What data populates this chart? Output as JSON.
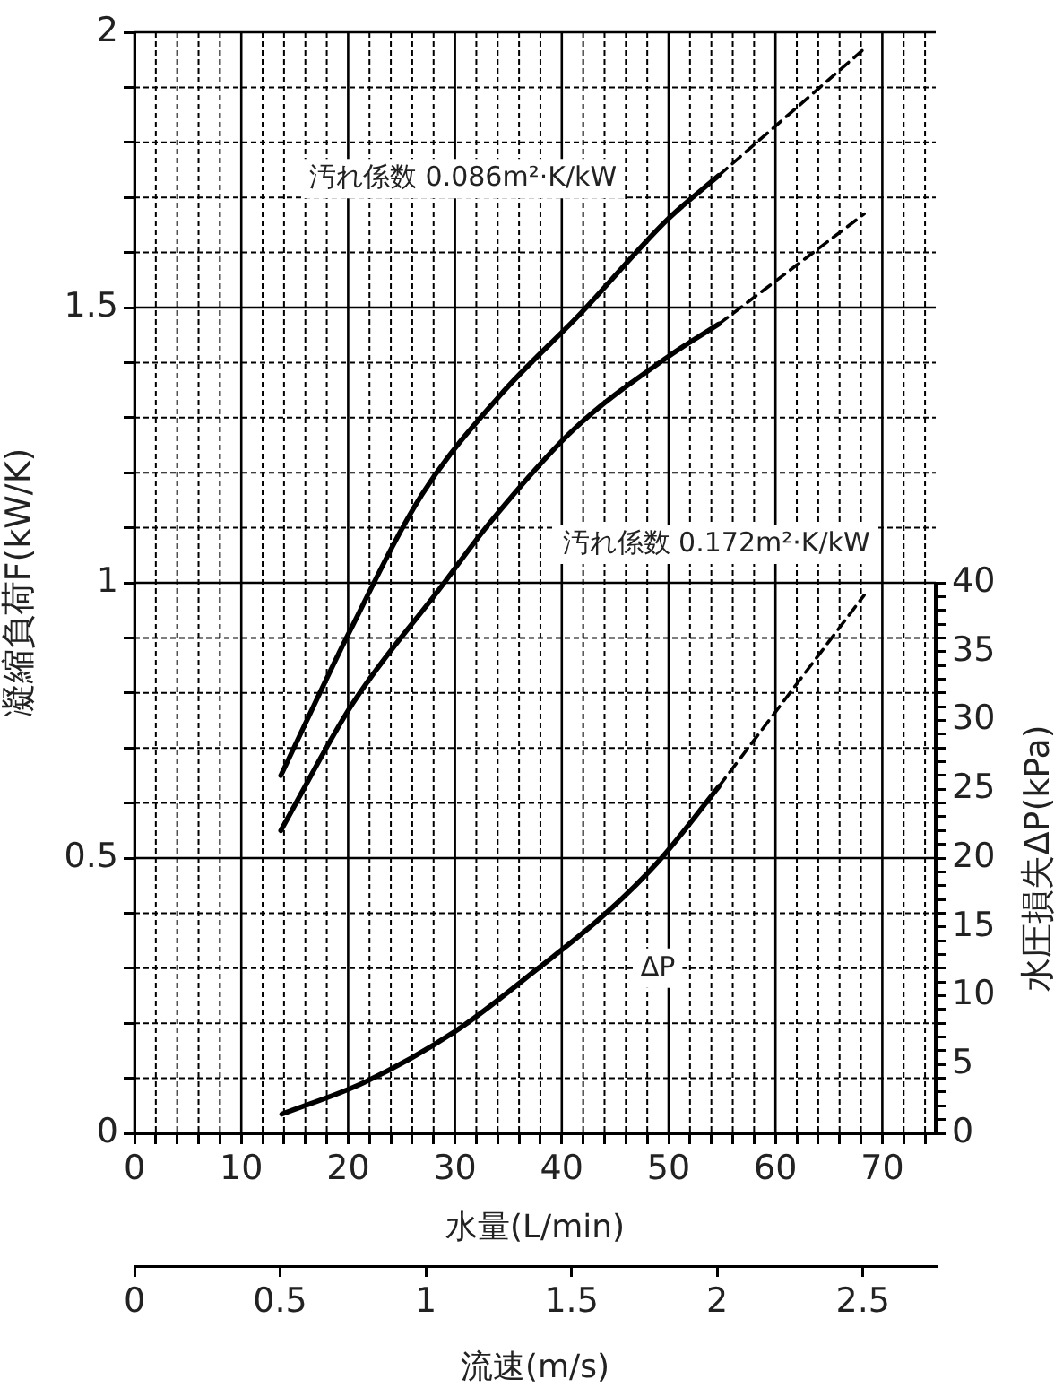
{
  "chart_data": {
    "type": "line",
    "xlabel": "水量(L/min)",
    "ylabel": "凝縮負荷F(kW/K)",
    "y2label": "水圧損失ΔP(kPa)",
    "x2label": "流速(m/s)",
    "xlim": [
      0,
      75
    ],
    "xticks": [
      0,
      {
        "value": 2,
        "label": null
      },
      {
        "value": 4,
        "label": null
      },
      {
        "value": 6,
        "label": null
      },
      {
        "value": 8,
        "label": null
      },
      10,
      {
        "value": 12,
        "label": null
      },
      {
        "value": 14,
        "label": null
      },
      {
        "value": 16,
        "label": null
      },
      {
        "value": 18,
        "label": null
      },
      20,
      {
        "value": 22,
        "label": null
      },
      {
        "value": 24,
        "label": null
      },
      {
        "value": 26,
        "label": null
      },
      {
        "value": 28,
        "label": null
      },
      30,
      {
        "value": 32,
        "label": null
      },
      {
        "value": 34,
        "label": null
      },
      {
        "value": 36,
        "label": null
      },
      {
        "value": 38,
        "label": null
      },
      40,
      {
        "value": 42,
        "label": null
      },
      {
        "value": 44,
        "label": null
      },
      {
        "value": 46,
        "label": null
      },
      {
        "value": 48,
        "label": null
      },
      50,
      {
        "value": 52,
        "label": null
      },
      {
        "value": 54,
        "label": null
      },
      {
        "value": 56,
        "label": null
      },
      {
        "value": 58,
        "label": null
      },
      60,
      {
        "value": 62,
        "label": null
      },
      {
        "value": 64,
        "label": null
      },
      {
        "value": 66,
        "label": null
      },
      {
        "value": 68,
        "label": null
      },
      70,
      {
        "value": 72,
        "label": null
      },
      {
        "value": 74,
        "label": null
      }
    ],
    "ylim": [
      0,
      2
    ],
    "yticks": [
      0,
      {
        "value": 0.1,
        "label": null
      },
      {
        "value": 0.2,
        "label": null
      },
      {
        "value": 0.3,
        "label": null
      },
      {
        "value": 0.4,
        "label": null
      },
      0.5,
      {
        "value": 0.6,
        "label": null
      },
      {
        "value": 0.7,
        "label": null
      },
      {
        "value": 0.8,
        "label": null
      },
      {
        "value": 0.9,
        "label": null
      },
      1,
      {
        "value": 1.1,
        "label": null
      },
      {
        "value": 1.2,
        "label": null
      },
      {
        "value": 1.3,
        "label": null
      },
      {
        "value": 1.4,
        "label": null
      },
      1.5,
      {
        "value": 1.6,
        "label": null
      },
      {
        "value": 1.7,
        "label": null
      },
      {
        "value": 1.8,
        "label": null
      },
      {
        "value": 1.9,
        "label": null
      },
      2
    ],
    "y2lim": [
      0,
      80
    ],
    "y2ticks": [
      0,
      {
        "value": 1,
        "label": null
      },
      {
        "value": 2,
        "label": null
      },
      {
        "value": 3,
        "label": null
      },
      {
        "value": 4,
        "label": null
      },
      5,
      {
        "value": 6,
        "label": null
      },
      {
        "value": 7,
        "label": null
      },
      {
        "value": 8,
        "label": null
      },
      {
        "value": 9,
        "label": null
      },
      10,
      {
        "value": 11,
        "label": null
      },
      {
        "value": 12,
        "label": null
      },
      {
        "value": 13,
        "label": null
      },
      {
        "value": 14,
        "label": null
      },
      15,
      {
        "value": 16,
        "label": null
      },
      {
        "value": 17,
        "label": null
      },
      {
        "value": 18,
        "label": null
      },
      {
        "value": 19,
        "label": null
      },
      20,
      {
        "value": 21,
        "label": null
      },
      {
        "value": 22,
        "label": null
      },
      {
        "value": 23,
        "label": null
      },
      {
        "value": 24,
        "label": null
      },
      25,
      {
        "value": 26,
        "label": null
      },
      {
        "value": 27,
        "label": null
      },
      {
        "value": 28,
        "label": null
      },
      {
        "value": 29,
        "label": null
      },
      30,
      {
        "value": 31,
        "label": null
      },
      {
        "value": 32,
        "label": null
      },
      {
        "value": 33,
        "label": null
      },
      {
        "value": 34,
        "label": null
      },
      35,
      {
        "value": 36,
        "label": null
      },
      {
        "value": 37,
        "label": null
      },
      {
        "value": 38,
        "label": null
      },
      {
        "value": 39,
        "label": null
      },
      40
    ],
    "x2lim": [
      0,
      2.75
    ],
    "x2ticks": [
      0,
      0.5,
      1,
      1.5,
      2,
      2.5
    ],
    "grid": true,
    "legend": false,
    "marker": "none",
    "series": [
      {
        "color": "#000000",
        "line_style": "solid",
        "x": [
          13.7,
          20.1,
          26.9,
          34.2,
          41.8,
          49.9,
          54.7
        ],
        "values": [
          0.65,
          0.91,
          1.16,
          1.34,
          1.49,
          1.66,
          1.74
        ]
      },
      {
        "color": "#000000",
        "line_style": "dashed",
        "x": [
          54.7,
          68.3
        ],
        "values": [
          1.74,
          1.97
        ]
      },
      {
        "color": "#000000",
        "line_style": "solid",
        "x": [
          13.7,
          20.4,
          28.6,
          33.3,
          41.2,
          49.9,
          54.7
        ],
        "values": [
          0.55,
          0.78,
          0.99,
          1.11,
          1.28,
          1.41,
          1.47
        ]
      },
      {
        "color": "#000000",
        "line_style": "dashed",
        "x": [
          54.7,
          68.3
        ],
        "values": [
          1.47,
          1.67
        ]
      },
      {
        "color": "#000000",
        "line_style": "solid",
        "axis": "y2",
        "x": [
          13.8,
          21.5,
          30.0,
          37.8,
          44.0,
          49.1,
          54.7
        ],
        "values": [
          1.4,
          3.7,
          7.4,
          12.0,
          15.9,
          19.8,
          25.2
        ]
      },
      {
        "color": "#000000",
        "line_style": "dashed",
        "axis": "y2",
        "x": [
          54.7,
          68.3
        ],
        "values": [
          25.2,
          39.1
        ]
      }
    ],
    "annotations": [
      "汚れ係数 0.086m²·K/kW",
      "汚れ係数 0.172m²·K/kW",
      {
        "text": "ΔP",
        "x": 49,
        "y": 0.3
      }
    ]
  }
}
